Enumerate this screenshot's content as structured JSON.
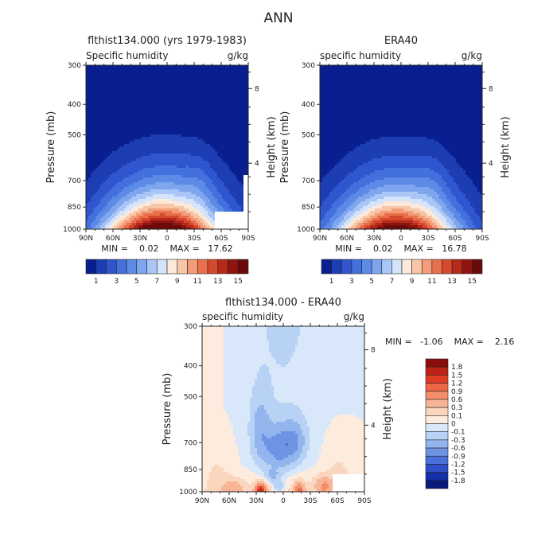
{
  "title": "ANN",
  "chart_data": [
    {
      "type": "heatmap",
      "title": "flthist134.000 (yrs 1979-1983)",
      "subtitle": "Specific humidity",
      "units": "g/kg",
      "xlabel": "",
      "ylabel": "Pressure (mb)",
      "ylabel_right": "Height (km)",
      "x_ticks": [
        "90N",
        "60N",
        "30N",
        "0",
        "30S",
        "60S",
        "90S"
      ],
      "y_ticks": [
        "300",
        "400",
        "500",
        "700",
        "850",
        "1000"
      ],
      "y_ticks_right": [
        "8",
        "4"
      ],
      "stats": "MIN =    0.02    MAX =   17.62",
      "peak": 17.62,
      "peak_location": {
        "lat": 5,
        "p": 1000
      },
      "colorbar": {
        "labels": [
          "1",
          "3",
          "5",
          "7",
          "9",
          "11",
          "13",
          "15"
        ]
      }
    },
    {
      "type": "heatmap",
      "title": "ERA40",
      "subtitle": "specific humidity",
      "units": "g/kg",
      "xlabel": "",
      "ylabel": "Pressure (mb)",
      "ylabel_right": "Height (km)",
      "x_ticks": [
        "90N",
        "60N",
        "30N",
        "0",
        "30S",
        "60S",
        "90S"
      ],
      "y_ticks": [
        "300",
        "400",
        "500",
        "700",
        "850",
        "1000"
      ],
      "y_ticks_right": [
        "8",
        "4"
      ],
      "stats": "MIN =    0.02    MAX =   16.78",
      "peak": 16.78,
      "peak_location": {
        "lat": 5,
        "p": 1000
      },
      "colorbar": {
        "labels": [
          "1",
          "3",
          "5",
          "7",
          "9",
          "11",
          "13",
          "15"
        ]
      }
    },
    {
      "type": "heatmap",
      "title": "flthist134.000 - ERA40",
      "subtitle": "specific humidity",
      "units": "g/kg",
      "xlabel": "",
      "ylabel": "Pressure (mb)",
      "ylabel_right": "Height (km)",
      "x_ticks": [
        "90N",
        "60N",
        "30N",
        "0",
        "30S",
        "60S",
        "90S"
      ],
      "y_ticks": [
        "300",
        "400",
        "500",
        "700",
        "850",
        "1000"
      ],
      "y_ticks_right": [
        "8",
        "4"
      ],
      "stats": "MIN =   -1.06    MAX =    2.16",
      "colorbar": {
        "labels": [
          "1.8",
          "1.5",
          "1.2",
          "0.9",
          "0.6",
          "0.3",
          "0.1",
          "0",
          "-0.1",
          "-0.3",
          "-0.6",
          "-0.9",
          "-1.2",
          "-1.5",
          "-1.8"
        ]
      }
    }
  ],
  "colors": {
    "abs_scale": [
      "#0a1f8f",
      "#1d3db3",
      "#2f56cf",
      "#4470dd",
      "#5c8ae6",
      "#7ea6ef",
      "#a9c6f7",
      "#d3e4fb",
      "#fde9da",
      "#f8c6a6",
      "#f29c78",
      "#e8704d",
      "#d54a2e",
      "#b52a1a",
      "#8f1410",
      "#6a0a0a"
    ],
    "diff_scale": [
      "#8a0d0d",
      "#bd2216",
      "#e03c25",
      "#ef6646",
      "#f38f6c",
      "#f7b596",
      "#fbd6bf",
      "#fdebdd",
      "#d8e8fa",
      "#b8d2f5",
      "#93b5ed",
      "#6d93e3",
      "#4c70d9",
      "#2e4fc8",
      "#152fa8",
      "#0a1a7a"
    ]
  }
}
